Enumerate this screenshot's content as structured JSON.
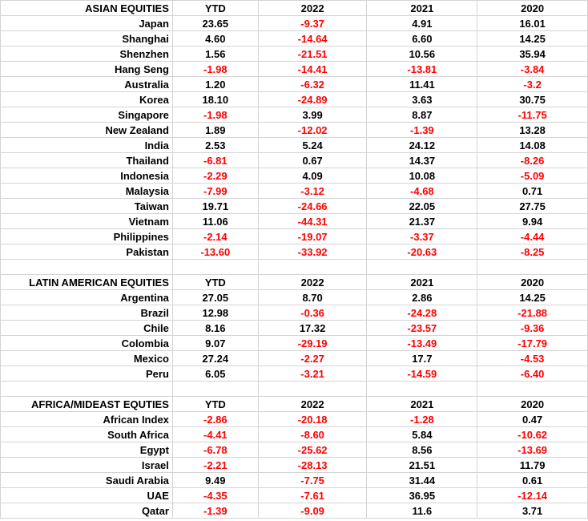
{
  "colors": {
    "negative": "#ff0000",
    "positive": "#000000",
    "grid": "#d4d4d4"
  },
  "sections": [
    {
      "header": [
        "ASIAN EQUITIES",
        "YTD",
        "2022",
        "2021",
        "2020"
      ],
      "rows": [
        [
          "Japan",
          "23.65",
          "-9.37",
          "4.91",
          "16.01"
        ],
        [
          "Shanghai",
          "4.60",
          "-14.64",
          "6.60",
          "14.25"
        ],
        [
          "Shenzhen",
          "1.56",
          "-21.51",
          "10.56",
          "35.94"
        ],
        [
          "Hang Seng",
          "-1.98",
          "-14.41",
          "-13.81",
          "-3.84"
        ],
        [
          "Australia",
          "1.20",
          "-6.32",
          "11.41",
          "-3.2"
        ],
        [
          "Korea",
          "18.10",
          "-24.89",
          "3.63",
          "30.75"
        ],
        [
          "Singapore",
          "-1.98",
          "3.99",
          "8.87",
          "-11.75"
        ],
        [
          "New Zealand",
          "1.89",
          "-12.02",
          "-1.39",
          "13.28"
        ],
        [
          "India",
          "2.53",
          "5.24",
          "24.12",
          "14.08"
        ],
        [
          "Thailand",
          "-6.81",
          "0.67",
          "14.37",
          "-8.26"
        ],
        [
          "Indonesia",
          "-2.29",
          "4.09",
          "10.08",
          "-5.09"
        ],
        [
          "Malaysia",
          "-7.99",
          "-3.12",
          "-4.68",
          "0.71"
        ],
        [
          "Taiwan",
          "19.71",
          "-24.66",
          "22.05",
          "27.75"
        ],
        [
          "Vietnam",
          "11.06",
          "-44.31",
          "21.37",
          "9.94"
        ],
        [
          "Philippines",
          "-2.14",
          "-19.07",
          "-3.37",
          "-4.44"
        ],
        [
          "Pakistan",
          "-13.60",
          "-33.92",
          "-20.63",
          "-8.25"
        ]
      ]
    },
    {
      "header": [
        "LATIN AMERICAN EQUITIES",
        "YTD",
        "2022",
        "2021",
        "2020"
      ],
      "rows": [
        [
          "Argentina",
          "27.05",
          "8.70",
          "2.86",
          "14.25"
        ],
        [
          "Brazil",
          "12.98",
          "-0.36",
          "-24.28",
          "-21.88"
        ],
        [
          "Chile",
          "8.16",
          "17.32",
          "-23.57",
          "-9.36"
        ],
        [
          "Colombia",
          "9.07",
          "-29.19",
          "-13.49",
          "-17.79"
        ],
        [
          "Mexico",
          "27.24",
          "-2.27",
          "17.7",
          "-4.53"
        ],
        [
          "Peru",
          "6.05",
          "-3.21",
          "-14.59",
          "-6.40"
        ]
      ]
    },
    {
      "header": [
        "AFRICA/MIDEAST EQUTIES",
        "YTD",
        "2022",
        "2021",
        "2020"
      ],
      "rows": [
        [
          "African Index",
          "-2.86",
          "-20.18",
          "-1.28",
          "0.47"
        ],
        [
          "South Africa",
          "-4.41",
          "-8.60",
          "5.84",
          "-10.62"
        ],
        [
          "Egypt",
          "-6.78",
          "-25.62",
          "8.56",
          "-13.69"
        ],
        [
          "Israel",
          "-2.21",
          "-28.13",
          "21.51",
          "11.79"
        ],
        [
          "Saudi Arabia",
          "9.49",
          "-7.75",
          "31.44",
          "0.61"
        ],
        [
          "UAE",
          "-4.35",
          "-7.61",
          "36.95",
          "-12.14"
        ],
        [
          "Qatar",
          "-1.39",
          "-9.09",
          "11.6",
          "3.71"
        ]
      ]
    }
  ]
}
